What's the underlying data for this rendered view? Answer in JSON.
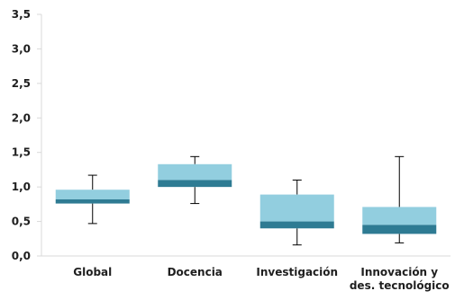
{
  "chart_data": {
    "type": "boxplot",
    "title": "",
    "xlabel": "",
    "ylabel": "",
    "ylim": [
      0,
      3.5
    ],
    "yticks": [
      "0,0",
      "0,5",
      "1,0",
      "1,5",
      "2,0",
      "2,5",
      "3,0",
      "3,5"
    ],
    "ytick_values": [
      0,
      0.5,
      1,
      1.5,
      2,
      2.5,
      3,
      3.5
    ],
    "grid": false,
    "categories": [
      [
        "Global"
      ],
      [
        "Docencia"
      ],
      [
        "Investigación"
      ],
      [
        "Innovación y",
        "des. tecnológico"
      ]
    ],
    "boxes": [
      {
        "min": 0.47,
        "q1": 0.76,
        "median": 0.82,
        "q3": 0.96,
        "max": 1.17
      },
      {
        "min": 0.76,
        "q1": 1.0,
        "median": 1.1,
        "q3": 1.33,
        "max": 1.44
      },
      {
        "min": 0.16,
        "q1": 0.4,
        "median": 0.5,
        "q3": 0.89,
        "max": 1.1
      },
      {
        "min": 0.19,
        "q1": 0.32,
        "median": 0.45,
        "q3": 0.71,
        "max": 1.44
      }
    ],
    "colors": {
      "upper_box": "#92cedf",
      "lower_box": "#2e7b93",
      "whisker": "#000000",
      "axis": "#d9d9d9"
    }
  }
}
